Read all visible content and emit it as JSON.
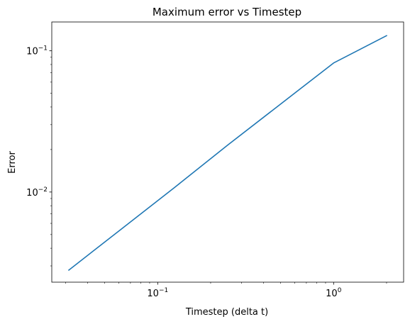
{
  "chart_data": {
    "type": "line",
    "title": "Maximum error vs Timestep",
    "xlabel": "Timestep (delta t)",
    "ylabel": "Error",
    "xscale": "log",
    "yscale": "log",
    "xlim": [
      0.025,
      2.5
    ],
    "ylim": [
      0.0023,
      0.16
    ],
    "x_ticks": [
      {
        "value": 0.1,
        "base": "10",
        "exp": "−1"
      },
      {
        "value": 1,
        "base": "10",
        "exp": "0"
      }
    ],
    "y_ticks": [
      {
        "value": 0.01,
        "base": "10",
        "exp": "−2"
      },
      {
        "value": 0.1,
        "base": "10",
        "exp": "−1"
      }
    ],
    "grid": false,
    "legend": "none",
    "series": [
      {
        "color": "#1f77b4",
        "x": [
          0.03125,
          0.0625,
          0.125,
          0.25,
          0.5,
          1,
          2
        ],
        "y": [
          0.0028,
          0.0055,
          0.0108,
          0.0215,
          0.042,
          0.082,
          0.128
        ]
      }
    ]
  }
}
